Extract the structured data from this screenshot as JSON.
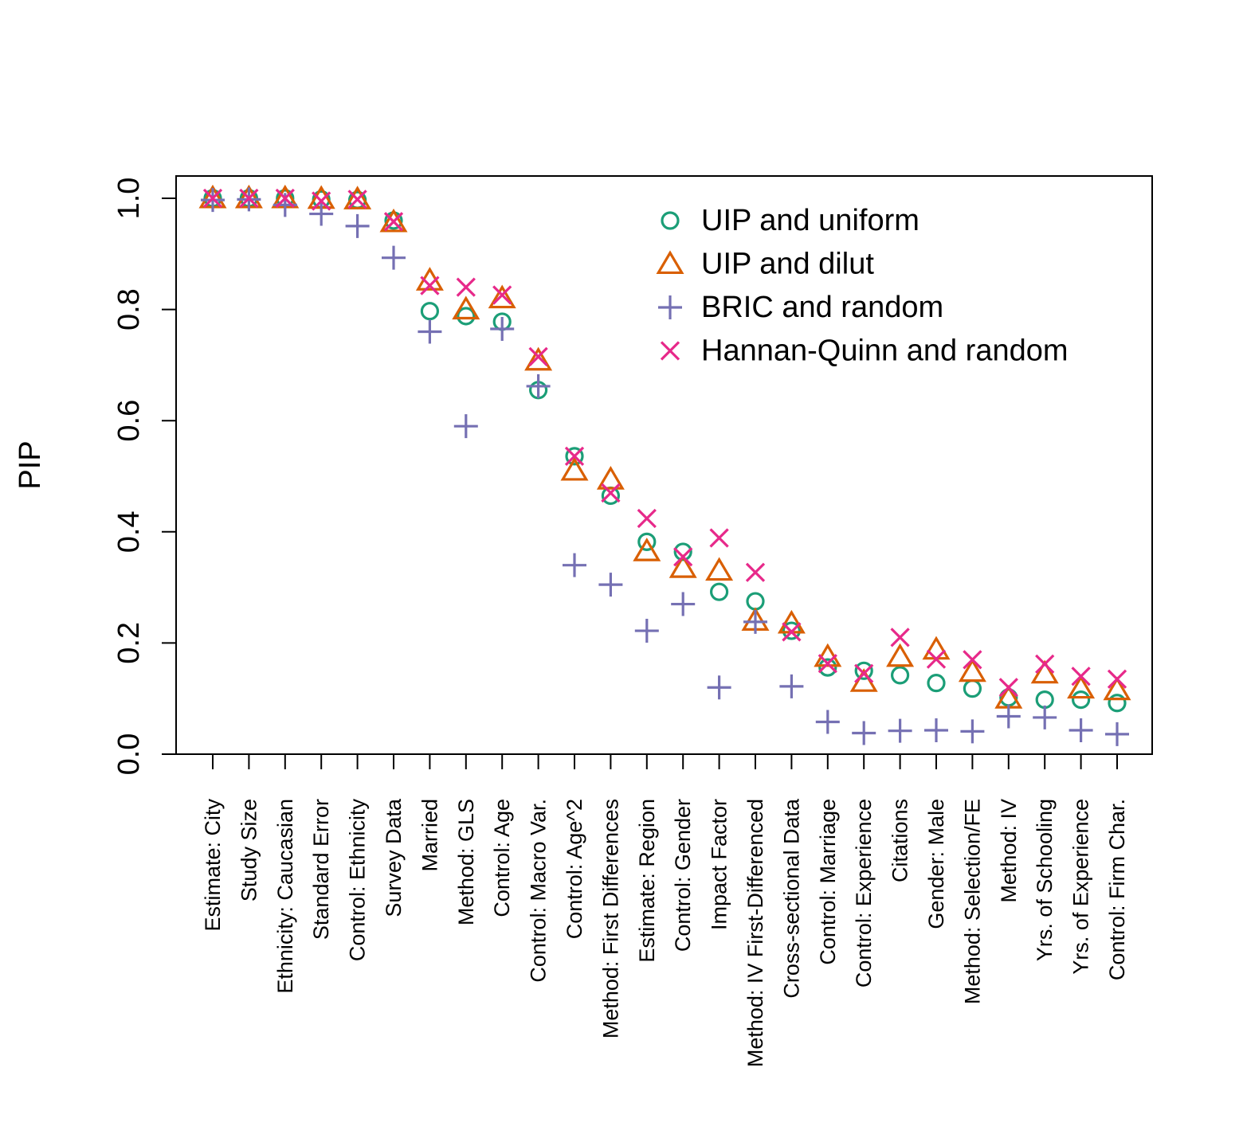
{
  "chart_data": {
    "type": "scatter",
    "ylabel": "PIP",
    "ylim": [
      0,
      1
    ],
    "yticks": [
      "0.0",
      "0.2",
      "0.4",
      "0.6",
      "0.8",
      "1.0"
    ],
    "legend_position": "top-right",
    "categories": [
      "Estimate: City",
      "Study Size",
      "Ethnicity: Caucasian",
      "Standard Error",
      "Control: Ethnicity",
      "Survey Data",
      "Married",
      "Method: GLS",
      "Control: Age",
      "Control: Macro Var.",
      "Control: Age^2",
      "Method: First Differences",
      "Estimate: Region",
      "Control: Gender",
      "Impact Factor",
      "Method: IV First-Differenced",
      "Cross-sectional Data",
      "Control: Marriage",
      "Control: Experience",
      "Citations",
      "Gender: Male",
      "Method: Selection/FE",
      "Method: IV",
      "Yrs. of Schooling",
      "Yrs. of Experience",
      "Control: Firm Char."
    ],
    "series": [
      {
        "name": "UIP and uniform",
        "marker": "circle",
        "color": "#1b9e77",
        "values": [
          1.0,
          1.0,
          1.0,
          0.998,
          0.997,
          0.96,
          0.797,
          0.788,
          0.778,
          0.655,
          0.536,
          0.465,
          0.382,
          0.364,
          0.292,
          0.275,
          0.222,
          0.156,
          0.15,
          0.142,
          0.128,
          0.118,
          0.102,
          0.098,
          0.098,
          0.092
        ]
      },
      {
        "name": "UIP and dilut",
        "marker": "triangle",
        "color": "#d95f02",
        "values": [
          1.0,
          1.0,
          1.0,
          0.999,
          0.998,
          0.957,
          0.852,
          0.8,
          0.82,
          0.708,
          0.51,
          0.494,
          0.365,
          0.335,
          0.33,
          0.24,
          0.235,
          0.175,
          0.13,
          0.175,
          0.188,
          0.148,
          0.1,
          0.145,
          0.118,
          0.115
        ]
      },
      {
        "name": "BRIC and random",
        "marker": "plus",
        "color": "#7570b3",
        "values": [
          0.997,
          0.998,
          0.988,
          0.972,
          0.95,
          0.893,
          0.76,
          0.59,
          0.765,
          0.662,
          0.34,
          0.305,
          0.222,
          0.27,
          0.12,
          0.238,
          0.122,
          0.058,
          0.038,
          0.042,
          0.043,
          0.041,
          0.068,
          0.066,
          0.043,
          0.036
        ]
      },
      {
        "name": "Hannan-Quinn and random",
        "marker": "cross",
        "color": "#e7298a",
        "values": [
          1.0,
          1.0,
          1.0,
          0.995,
          0.998,
          0.958,
          0.843,
          0.84,
          0.826,
          0.715,
          0.536,
          0.47,
          0.424,
          0.355,
          0.389,
          0.327,
          0.22,
          0.163,
          0.145,
          0.21,
          0.171,
          0.17,
          0.12,
          0.162,
          0.14,
          0.135
        ]
      }
    ]
  }
}
